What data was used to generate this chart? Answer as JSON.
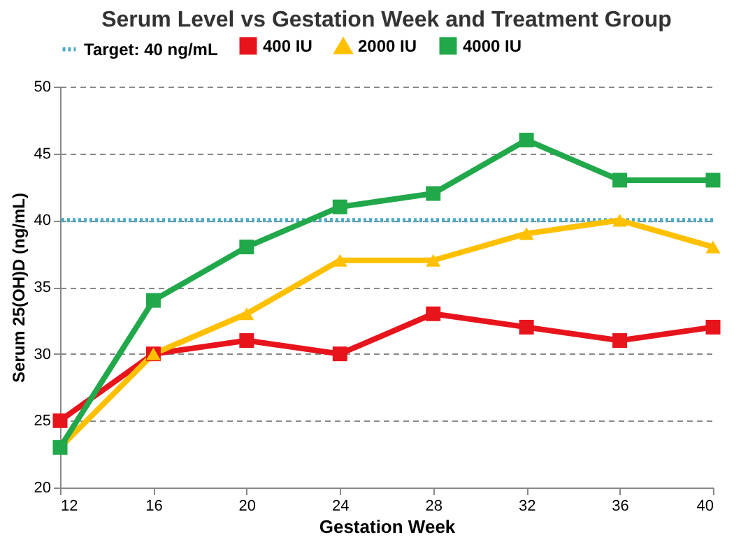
{
  "chart_data": {
    "type": "line",
    "title": "Serum Level vs Gestation Week and Treatment Group",
    "xlabel": "Gestation Week",
    "ylabel": "Serum 25(OH)D (ng/mL)",
    "x": [
      12,
      16,
      20,
      24,
      28,
      32,
      36,
      40
    ],
    "series": [
      {
        "name": "400 IU",
        "color": "#e8141c",
        "marker": "square",
        "values": [
          25,
          30,
          31,
          30,
          33,
          32,
          31,
          32
        ]
      },
      {
        "name": "2000 IU",
        "color": "#ffc000",
        "marker": "triangle",
        "values": [
          23,
          30,
          33,
          37,
          37,
          39,
          40,
          38
        ]
      },
      {
        "name": "4000 IU",
        "color": "#21a84a",
        "marker": "square",
        "values": [
          23,
          34,
          38,
          41,
          42,
          46,
          43,
          43
        ]
      }
    ],
    "ref_lines": [
      {
        "axis": "y",
        "value": 40,
        "label": "Target: 40 ng/mL",
        "color": "#4bacc6",
        "line_style": "dotted"
      }
    ],
    "xlim": [
      12,
      40
    ],
    "xticks": [
      12,
      16,
      20,
      24,
      28,
      32,
      36,
      40
    ],
    "ylim": [
      20,
      50
    ],
    "yticks": [
      20,
      25,
      30,
      35,
      40,
      45,
      50
    ],
    "grid": "y",
    "legend": "top"
  }
}
